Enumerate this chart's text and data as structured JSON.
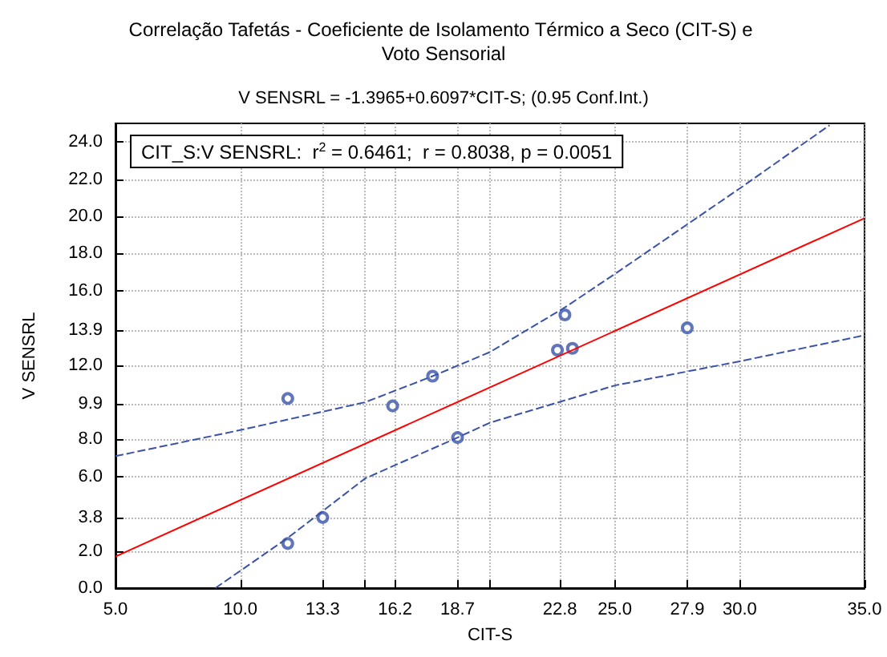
{
  "chart_data": {
    "type": "scatter",
    "title": "Correlação Tafetás - Coeficiente de Isolamento Térmico a Seco (CIT-S) e Voto Sensorial",
    "subtitle": "V SENSRL = -1.3965+0.6097*CIT-S; (0.95 Conf.Int.)",
    "xlabel": "CIT-S",
    "ylabel": "V SENSRL",
    "annotations": [
      "CIT_S:V SENSRL:  r$^{2}$ = 0.6461;  r = 0.8038, p = 0.0051"
    ],
    "series": [
      {
        "color": "#3a52a8",
        "marker": "circle",
        "x": [
          11.9,
          11.9,
          13.3,
          16.1,
          17.7,
          18.7,
          22.7,
          23.0,
          23.3,
          27.9
        ],
        "values": [
          10.2,
          2.4,
          3.8,
          9.8,
          11.4,
          8.1,
          12.8,
          14.7,
          12.9,
          14.0
        ]
      },
      {
        "type": "line",
        "color": "#ff0000",
        "line_style": "solid",
        "marker": "none",
        "x": [
          5,
          35
        ],
        "values": [
          1.7,
          19.9
        ]
      },
      {
        "type": "line",
        "color": "#3a52a8",
        "line_style": "dashed",
        "marker": "none",
        "x": [
          5,
          10,
          15,
          17.7,
          20,
          23,
          25,
          30,
          33.6
        ],
        "values": [
          7.1,
          8.5,
          10.0,
          11.4,
          12.7,
          15.1,
          16.9,
          21.5,
          24.9
        ]
      },
      {
        "type": "line",
        "color": "#3a52a8",
        "line_style": "dashed",
        "marker": "none",
        "x": [
          9.0,
          11.9,
          15,
          18.7,
          20,
          25,
          30,
          35
        ],
        "values": [
          0,
          2.7,
          5.9,
          8.1,
          8.9,
          10.9,
          12.2,
          13.6
        ]
      }
    ],
    "xlim": [
      5,
      35
    ],
    "xticks": [
      {
        "value": 5,
        "label": "5.0"
      },
      {
        "value": 10,
        "label": "10.0"
      },
      {
        "value": 13.3,
        "label": "13.3"
      },
      {
        "value": 15,
        "label": null
      },
      {
        "value": 16.2,
        "label": "16.2"
      },
      {
        "value": 18.7,
        "label": "18.7"
      },
      {
        "value": 20,
        "label": null
      },
      {
        "value": 22.8,
        "label": "22.8"
      },
      {
        "value": 25,
        "label": "25.0"
      },
      {
        "value": 27.9,
        "label": "27.9"
      },
      {
        "value": 30,
        "label": "30.0"
      },
      {
        "value": 35,
        "label": "35.0"
      }
    ],
    "ylim": [
      0,
      25
    ],
    "yticks": [
      {
        "value": 0,
        "label": "0.0"
      },
      {
        "value": 2,
        "label": "2.0"
      },
      {
        "value": 3.8,
        "label": "3.8"
      },
      {
        "value": 6,
        "label": "6.0"
      },
      {
        "value": 8,
        "label": "8.0"
      },
      {
        "value": 9.9,
        "label": "9.9"
      },
      {
        "value": 12,
        "label": "12.0"
      },
      {
        "value": 13.9,
        "label": "13.9"
      },
      {
        "value": 16,
        "label": "16.0"
      },
      {
        "value": 18,
        "label": "18.0"
      },
      {
        "value": 20,
        "label": "20.0"
      },
      {
        "value": 22,
        "label": "22.0"
      },
      {
        "value": 24,
        "label": "24.0"
      }
    ],
    "grid": true
  }
}
